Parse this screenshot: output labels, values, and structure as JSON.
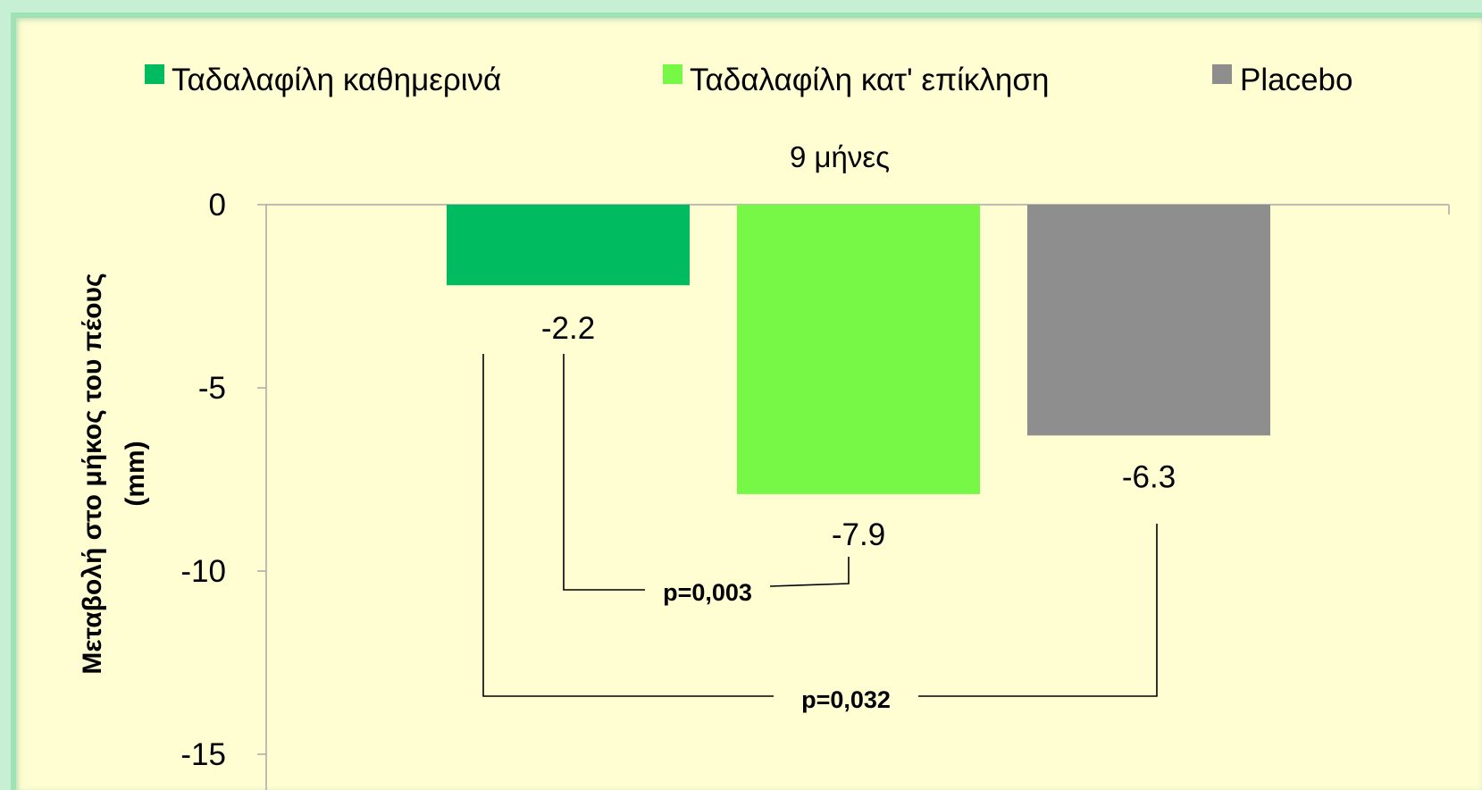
{
  "chart_data": {
    "type": "bar",
    "title": "9 μήνες",
    "ylabel_line1": "Μεταβολή στο μήκος του πέους",
    "ylabel_line2": "(mm)",
    "ylim": [
      -15,
      0
    ],
    "yticks": [
      0,
      -5,
      -10,
      -15
    ],
    "legend_position": "top",
    "series": [
      {
        "name": "Ταδαλαφίλη καθημερινά",
        "value": -2.2,
        "label": "-2.2",
        "color": "#00bb5f"
      },
      {
        "name": "Ταδαλαφίλη κατ' επίκληση",
        "value": -7.9,
        "label": "-7.9",
        "color": "#77f746"
      },
      {
        "name": "Placebo",
        "value": -6.3,
        "label": "-6.3",
        "color": "#8e8e8e"
      }
    ],
    "annotations": [
      {
        "text": "p=0,003",
        "from": 0,
        "to": 1
      },
      {
        "text": "p=0,032",
        "from": 0,
        "to": 2
      }
    ]
  }
}
